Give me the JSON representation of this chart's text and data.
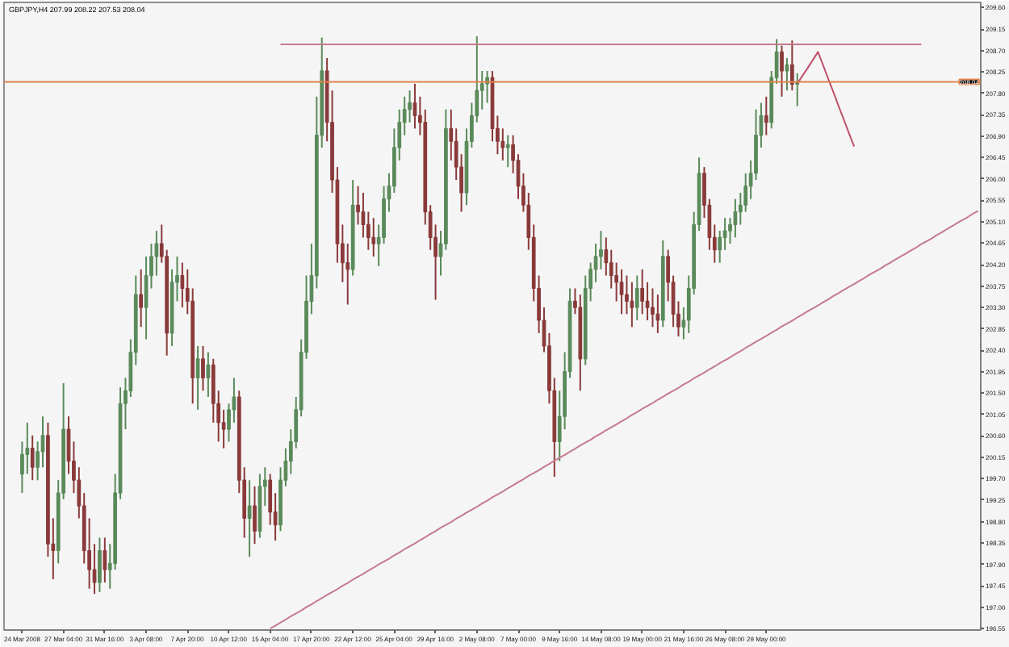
{
  "chart_data": {
    "type": "candlestick",
    "title": "GBPJPY,H4 207.99 208.22 207.53 208.04",
    "categories": [
      "24 Mar 2008",
      null,
      null,
      null,
      null,
      null,
      null,
      null,
      "27 Mar 04:00",
      null,
      null,
      null,
      null,
      null,
      null,
      null,
      "31 Mar 16:00",
      null,
      null,
      null,
      null,
      null,
      null,
      null,
      "3 Apr 08:00",
      null,
      null,
      null,
      null,
      null,
      null,
      null,
      "7 Apr 20:00",
      null,
      null,
      null,
      null,
      null,
      null,
      null,
      "10 Apr 12:00",
      null,
      null,
      null,
      null,
      null,
      null,
      null,
      "15 Apr 04:00",
      null,
      null,
      null,
      null,
      null,
      null,
      null,
      "17 Apr 20:00",
      null,
      null,
      null,
      null,
      null,
      null,
      null,
      "22 Apr 12:00",
      null,
      null,
      null,
      null,
      null,
      null,
      null,
      "25 Apr 04:00",
      null,
      null,
      null,
      null,
      null,
      null,
      null,
      "29 Apr 16:00",
      null,
      null,
      null,
      null,
      null,
      null,
      null,
      "2 May 08:00",
      null,
      null,
      null,
      null,
      null,
      null,
      null,
      "7 May 00:00",
      null,
      null,
      null,
      null,
      null,
      null,
      null,
      "9 May 16:00",
      null,
      null,
      null,
      null,
      null,
      null,
      null,
      "14 May 08:00",
      null,
      null,
      null,
      null,
      null,
      null,
      null,
      "19 May 00:00",
      null,
      null,
      null,
      null,
      null,
      null,
      null,
      "21 May 16:00",
      null,
      null,
      null,
      null,
      null,
      null,
      null,
      "26 May 08:00",
      null,
      null,
      null,
      null,
      null,
      null,
      null,
      "29 May 00:00",
      null,
      null,
      null,
      null,
      null,
      null,
      null,
      null,
      null,
      null,
      null,
      null,
      null,
      null,
      null,
      null,
      null,
      null,
      null,
      null,
      null,
      null,
      null,
      null,
      null,
      null,
      null,
      null,
      null,
      null,
      null,
      null,
      null,
      null,
      null,
      null,
      null,
      null,
      null,
      null,
      null
    ],
    "ylim": [
      196.52,
      209.71
    ],
    "yticks": [
      196.55,
      {
        "value": 197,
        "label": "197.00"
      },
      197.45,
      {
        "value": 197.9,
        "label": "197.90"
      },
      198.35,
      {
        "value": 198.8,
        "label": "198.80"
      },
      199.25,
      {
        "value": 199.7,
        "label": "199.70"
      },
      200.15,
      {
        "value": 200.6,
        "label": "200.60"
      },
      201.05,
      {
        "value": 201.5,
        "label": "201.50"
      },
      201.95,
      {
        "value": 202.4,
        "label": "202.40"
      },
      202.85,
      {
        "value": 203.3,
        "label": "203.30"
      },
      203.75,
      {
        "value": 204.2,
        "label": "204.20"
      },
      204.65,
      {
        "value": 205.1,
        "label": "205.10"
      },
      205.55,
      {
        "value": 206,
        "label": "206.00"
      },
      206.45,
      {
        "value": 206.9,
        "label": "206.90"
      },
      207.35,
      {
        "value": 207.8,
        "label": "207.80"
      },
      208.25,
      {
        "value": 208.7,
        "label": "208.70"
      },
      209.15,
      {
        "value": 209.6,
        "label": "209.60"
      }
    ],
    "ref_lines": [
      {
        "axis": "y",
        "value": 208.04,
        "label": "208.04",
        "color": "#e0824a"
      }
    ],
    "series": [
      {
        "ohlc": [
          [
            199.8,
            200.48,
            199.4,
            200.21
          ],
          [
            200.21,
            200.88,
            199.8,
            200.34
          ],
          [
            200.34,
            200.61,
            199.67,
            199.94
          ],
          [
            199.94,
            200.48,
            199.67,
            200.27
          ],
          [
            200.27,
            201.01,
            199.94,
            200.61
          ],
          [
            200.61,
            200.88,
            198.06,
            198.33
          ],
          [
            198.33,
            198.87,
            197.59,
            198.19
          ],
          [
            198.19,
            199.67,
            197.92,
            199.4
          ],
          [
            199.4,
            201.71,
            199.27,
            200.74
          ],
          [
            200.74,
            201.01,
            199.8,
            200.07
          ],
          [
            200.07,
            200.48,
            199.4,
            199.67
          ],
          [
            199.67,
            199.94,
            198.87,
            199.13
          ],
          [
            199.13,
            199.4,
            197.92,
            198.19
          ],
          [
            198.19,
            198.87,
            197.39,
            197.79
          ],
          [
            197.79,
            198.33,
            197.28,
            197.52
          ],
          [
            197.52,
            198.46,
            197.32,
            198.19
          ],
          [
            198.19,
            198.46,
            197.52,
            197.79
          ],
          [
            197.79,
            198.33,
            197.39,
            197.92
          ],
          [
            197.92,
            199.8,
            197.79,
            199.4
          ],
          [
            199.4,
            201.62,
            199.27,
            201.28
          ],
          [
            201.28,
            201.82,
            200.74,
            201.55
          ],
          [
            201.55,
            202.63,
            201.42,
            202.36
          ],
          [
            202.36,
            203.97,
            202.09,
            203.57
          ],
          [
            203.57,
            204.1,
            202.89,
            203.3
          ],
          [
            203.3,
            204.37,
            202.63,
            203.97
          ],
          [
            203.97,
            204.64,
            203.7,
            204.37
          ],
          [
            204.37,
            204.91,
            203.97,
            204.64
          ],
          [
            204.64,
            205.04,
            204.24,
            204.37
          ],
          [
            204.37,
            204.51,
            202.29,
            202.76
          ],
          [
            202.76,
            204.1,
            202.49,
            203.83
          ],
          [
            203.83,
            204.37,
            203.43,
            203.97
          ],
          [
            203.97,
            204.24,
            203.3,
            203.7
          ],
          [
            203.7,
            204.1,
            203.16,
            203.43
          ],
          [
            203.43,
            203.7,
            201.28,
            201.82
          ],
          [
            201.82,
            202.49,
            201.15,
            202.22
          ],
          [
            202.22,
            202.49,
            201.55,
            201.82
          ],
          [
            201.82,
            202.36,
            201.42,
            202.09
          ],
          [
            202.09,
            202.22,
            200.88,
            201.28
          ],
          [
            201.28,
            201.55,
            200.48,
            200.88
          ],
          [
            200.88,
            201.15,
            200.34,
            200.74
          ],
          [
            200.74,
            201.28,
            200.48,
            201.15
          ],
          [
            201.15,
            201.82,
            200.88,
            201.42
          ],
          [
            201.42,
            201.55,
            199.4,
            199.67
          ],
          [
            199.67,
            199.94,
            198.46,
            198.87
          ],
          [
            198.87,
            199.67,
            198.06,
            199.13
          ],
          [
            199.13,
            199.54,
            198.33,
            198.6
          ],
          [
            198.6,
            199.8,
            198.46,
            199.54
          ],
          [
            199.54,
            199.94,
            199.13,
            199.67
          ],
          [
            199.67,
            199.8,
            198.73,
            199.0
          ],
          [
            199.0,
            199.4,
            198.4,
            198.73
          ],
          [
            198.73,
            199.94,
            198.6,
            199.67
          ],
          [
            199.67,
            200.34,
            199.54,
            200.07
          ],
          [
            200.07,
            200.74,
            199.8,
            200.48
          ],
          [
            200.48,
            201.42,
            200.34,
            201.15
          ],
          [
            201.15,
            202.63,
            201.01,
            202.36
          ],
          [
            202.36,
            203.97,
            202.22,
            203.43
          ],
          [
            203.43,
            204.64,
            203.16,
            203.97
          ],
          [
            203.97,
            207.73,
            203.7,
            206.92
          ],
          [
            206.92,
            208.97,
            206.66,
            208.27
          ],
          [
            208.27,
            208.54,
            206.79,
            207.19
          ],
          [
            207.19,
            207.86,
            205.71,
            205.98
          ],
          [
            205.98,
            206.25,
            204.24,
            204.64
          ],
          [
            204.64,
            205.04,
            203.83,
            204.24
          ],
          [
            204.24,
            204.64,
            203.36,
            204.1
          ],
          [
            204.1,
            205.98,
            203.97,
            205.45
          ],
          [
            205.45,
            205.85,
            205.04,
            205.31
          ],
          [
            205.31,
            205.71,
            204.77,
            205.04
          ],
          [
            205.04,
            205.31,
            204.51,
            204.77
          ],
          [
            204.77,
            205.18,
            204.37,
            204.64
          ],
          [
            204.64,
            205.04,
            204.17,
            204.77
          ],
          [
            204.77,
            205.85,
            204.64,
            205.58
          ],
          [
            205.58,
            206.12,
            205.31,
            205.85
          ],
          [
            205.85,
            207.06,
            205.71,
            206.66
          ],
          [
            206.66,
            207.46,
            206.39,
            207.19
          ],
          [
            207.19,
            207.73,
            206.92,
            207.46
          ],
          [
            207.46,
            207.86,
            207.19,
            207.6
          ],
          [
            207.6,
            208.0,
            207.06,
            207.33
          ],
          [
            207.33,
            207.73,
            206.92,
            207.19
          ],
          [
            207.19,
            207.46,
            205.04,
            205.31
          ],
          [
            205.31,
            205.45,
            204.51,
            204.77
          ],
          [
            204.77,
            205.04,
            203.46,
            204.37
          ],
          [
            204.37,
            204.91,
            203.97,
            204.64
          ],
          [
            204.64,
            207.46,
            204.51,
            207.06
          ],
          [
            207.06,
            207.46,
            206.39,
            206.79
          ],
          [
            206.79,
            207.06,
            205.98,
            206.25
          ],
          [
            206.25,
            206.52,
            205.31,
            205.71
          ],
          [
            205.71,
            207.06,
            205.45,
            206.79
          ],
          [
            206.79,
            207.6,
            206.66,
            207.33
          ],
          [
            207.33,
            209.0,
            207.19,
            207.86
          ],
          [
            207.86,
            208.27,
            207.46,
            208.0
          ],
          [
            208.0,
            208.27,
            207.6,
            208.13
          ],
          [
            208.13,
            208.27,
            206.79,
            207.06
          ],
          [
            207.06,
            207.33,
            206.52,
            206.79
          ],
          [
            206.79,
            207.06,
            206.39,
            206.66
          ],
          [
            206.66,
            206.92,
            206.25,
            206.72
          ],
          [
            206.72,
            206.92,
            206.12,
            206.39
          ],
          [
            206.39,
            206.52,
            205.58,
            205.85
          ],
          [
            205.85,
            206.12,
            205.31,
            205.45
          ],
          [
            205.45,
            205.71,
            204.51,
            204.77
          ],
          [
            204.77,
            205.04,
            203.43,
            203.7
          ],
          [
            203.7,
            203.97,
            202.76,
            203.03
          ],
          [
            203.03,
            203.3,
            202.36,
            202.49
          ],
          [
            202.49,
            202.76,
            201.28,
            201.55
          ],
          [
            201.55,
            201.82,
            199.74,
            200.48
          ],
          [
            200.48,
            201.55,
            200.07,
            201.01
          ],
          [
            201.01,
            202.36,
            200.74,
            201.95
          ],
          [
            201.95,
            203.7,
            201.82,
            203.43
          ],
          [
            203.43,
            203.7,
            203.16,
            203.3
          ],
          [
            203.3,
            203.57,
            201.55,
            202.22
          ],
          [
            202.22,
            203.97,
            202.09,
            203.7
          ],
          [
            203.7,
            204.24,
            203.43,
            204.1
          ],
          [
            204.1,
            204.64,
            203.83,
            204.37
          ],
          [
            204.37,
            204.91,
            204.1,
            204.51
          ],
          [
            204.51,
            204.77,
            203.97,
            204.24
          ],
          [
            204.24,
            204.51,
            203.7,
            203.97
          ],
          [
            203.97,
            204.24,
            203.43,
            203.83
          ],
          [
            203.83,
            204.1,
            203.16,
            203.57
          ],
          [
            203.57,
            203.97,
            203.16,
            203.43
          ],
          [
            203.43,
            203.83,
            202.89,
            203.3
          ],
          [
            203.3,
            203.97,
            203.03,
            203.7
          ],
          [
            203.7,
            204.1,
            203.16,
            203.43
          ],
          [
            203.43,
            203.83,
            203.03,
            203.3
          ],
          [
            203.3,
            203.7,
            202.89,
            203.16
          ],
          [
            203.16,
            203.57,
            202.76,
            203.03
          ],
          [
            203.03,
            204.71,
            202.89,
            204.37
          ],
          [
            204.37,
            204.51,
            203.43,
            203.83
          ],
          [
            203.83,
            203.97,
            202.89,
            203.16
          ],
          [
            203.16,
            203.43,
            202.69,
            202.89
          ],
          [
            202.89,
            203.3,
            202.63,
            203.03
          ],
          [
            203.03,
            203.97,
            202.76,
            203.7
          ],
          [
            203.7,
            205.31,
            203.57,
            205.04
          ],
          [
            205.04,
            206.45,
            204.91,
            206.12
          ],
          [
            206.12,
            206.25,
            205.18,
            205.45
          ],
          [
            205.45,
            205.58,
            204.51,
            204.77
          ],
          [
            204.77,
            205.04,
            204.24,
            204.51
          ],
          [
            204.51,
            204.91,
            204.24,
            204.77
          ],
          [
            204.77,
            205.18,
            204.51,
            204.91
          ],
          [
            204.91,
            205.18,
            204.64,
            205.04
          ],
          [
            205.04,
            205.58,
            204.77,
            205.31
          ],
          [
            205.31,
            205.71,
            205.04,
            205.45
          ],
          [
            205.45,
            206.12,
            205.31,
            205.85
          ],
          [
            205.85,
            206.39,
            205.58,
            206.12
          ],
          [
            206.12,
            207.46,
            205.98,
            206.92
          ],
          [
            206.92,
            207.6,
            206.66,
            207.33
          ],
          [
            207.33,
            207.73,
            206.92,
            207.19
          ],
          [
            207.19,
            208.27,
            207.06,
            208.13
          ],
          [
            208.13,
            208.94,
            208.0,
            208.67
          ],
          [
            208.67,
            208.8,
            207.73,
            208.27
          ],
          [
            208.27,
            208.54,
            207.86,
            208.4
          ],
          [
            208.4,
            208.91,
            207.86,
            207.99
          ],
          [
            207.99,
            208.22,
            207.53,
            208.04
          ],
          null,
          null,
          null,
          null,
          null,
          null,
          null,
          null,
          null,
          null,
          null,
          null,
          null,
          null,
          null,
          null,
          null,
          null,
          null,
          null,
          null,
          null,
          null,
          null,
          null,
          null,
          null,
          null,
          null,
          null,
          null,
          null,
          null,
          null,
          null
        ],
        "colors": [
          "#5a8a5a",
          "#5a8a5a",
          "#8a3a3a",
          "#5a8a5a",
          "#5a8a5a",
          "#8a3a3a",
          "#8a3a3a",
          "#5a8a5a",
          "#5a8a5a",
          "#8a3a3a",
          "#8a3a3a",
          "#8a3a3a",
          "#8a3a3a",
          "#8a3a3a",
          "#8a3a3a",
          "#5a8a5a",
          "#8a3a3a",
          "#5a8a5a",
          "#5a8a5a",
          "#5a8a5a",
          "#5a8a5a",
          "#5a8a5a",
          "#5a8a5a",
          "#8a3a3a",
          "#5a8a5a",
          "#5a8a5a",
          "#5a8a5a",
          "#8a3a3a",
          "#8a3a3a",
          "#5a8a5a",
          "#5a8a5a",
          "#8a3a3a",
          "#8a3a3a",
          "#8a3a3a",
          "#5a8a5a",
          "#8a3a3a",
          "#5a8a5a",
          "#8a3a3a",
          "#8a3a3a",
          "#8a3a3a",
          "#5a8a5a",
          "#5a8a5a",
          "#8a3a3a",
          "#8a3a3a",
          "#5a8a5a",
          "#8a3a3a",
          "#5a8a5a",
          "#5a8a5a",
          "#8a3a3a",
          "#8a3a3a",
          "#5a8a5a",
          "#5a8a5a",
          "#5a8a5a",
          "#5a8a5a",
          "#5a8a5a",
          "#5a8a5a",
          "#5a8a5a",
          "#5a8a5a",
          "#5a8a5a",
          "#8a3a3a",
          "#8a3a3a",
          "#8a3a3a",
          "#8a3a3a",
          "#8a3a3a",
          "#5a8a5a",
          "#8a3a3a",
          "#8a3a3a",
          "#8a3a3a",
          "#8a3a3a",
          "#5a8a5a",
          "#5a8a5a",
          "#5a8a5a",
          "#5a8a5a",
          "#5a8a5a",
          "#5a8a5a",
          "#5a8a5a",
          "#8a3a3a",
          "#8a3a3a",
          "#8a3a3a",
          "#8a3a3a",
          "#8a3a3a",
          "#5a8a5a",
          "#5a8a5a",
          "#8a3a3a",
          "#8a3a3a",
          "#8a3a3a",
          "#5a8a5a",
          "#5a8a5a",
          "#5a8a5a",
          "#5a8a5a",
          "#5a8a5a",
          "#8a3a3a",
          "#8a3a3a",
          "#8a3a3a",
          "#5a8a5a",
          "#8a3a3a",
          "#8a3a3a",
          "#8a3a3a",
          "#8a3a3a",
          "#8a3a3a",
          "#8a3a3a",
          "#8a3a3a",
          "#8a3a3a",
          "#8a3a3a",
          "#5a8a5a",
          "#5a8a5a",
          "#5a8a5a",
          "#8a3a3a",
          "#8a3a3a",
          "#5a8a5a",
          "#5a8a5a",
          "#5a8a5a",
          "#5a8a5a",
          "#8a3a3a",
          "#8a3a3a",
          "#8a3a3a",
          "#8a3a3a",
          "#8a3a3a",
          "#8a3a3a",
          "#5a8a5a",
          "#8a3a3a",
          "#8a3a3a",
          "#8a3a3a",
          "#8a3a3a",
          "#5a8a5a",
          "#8a3a3a",
          "#8a3a3a",
          "#8a3a3a",
          "#5a8a5a",
          "#5a8a5a",
          "#5a8a5a",
          "#5a8a5a",
          "#8a3a3a",
          "#8a3a3a",
          "#8a3a3a",
          "#5a8a5a",
          "#5a8a5a",
          "#5a8a5a",
          "#5a8a5a",
          "#5a8a5a",
          "#5a8a5a",
          "#5a8a5a",
          "#5a8a5a",
          "#5a8a5a",
          "#8a3a3a",
          "#5a8a5a",
          "#5a8a5a",
          "#8a3a3a",
          "#5a8a5a",
          "#8a3a3a",
          "#5a8a5a",
          null,
          null,
          null,
          null,
          null,
          null,
          null,
          null,
          null,
          null,
          null,
          null,
          null,
          null,
          null,
          null,
          null,
          null,
          null,
          null,
          null,
          null,
          null,
          null,
          null,
          null,
          null,
          null,
          null,
          null,
          null,
          null,
          null,
          null,
          null
        ]
      },
      {
        "type": "line",
        "color": "#c47a8e",
        "values": [
          null,
          null,
          null,
          null,
          null,
          null,
          null,
          null,
          null,
          null,
          null,
          null,
          null,
          null,
          null,
          null,
          null,
          null,
          null,
          null,
          null,
          null,
          null,
          null,
          null,
          null,
          null,
          null,
          null,
          null,
          null,
          null,
          null,
          null,
          null,
          null,
          null,
          null,
          null,
          null,
          null,
          null,
          null,
          null,
          null,
          null,
          null,
          null,
          null,
          null,
          208.83,
          208.83,
          208.83,
          208.83,
          208.83,
          208.83,
          208.83,
          208.83,
          208.83,
          208.83,
          208.83,
          208.83,
          208.83,
          208.83,
          208.83,
          208.83,
          208.83,
          208.83,
          208.83,
          208.83,
          208.83,
          208.83,
          208.83,
          208.83,
          208.83,
          208.83,
          208.83,
          208.83,
          208.83,
          208.83,
          208.83,
          208.83,
          208.83,
          208.83,
          208.83,
          208.83,
          208.83,
          208.83,
          208.83,
          208.83,
          208.83,
          208.83,
          208.83,
          208.83,
          208.83,
          208.83,
          208.83,
          208.83,
          208.83,
          208.83,
          208.83,
          208.83,
          208.83,
          208.83,
          208.83,
          208.83,
          208.83,
          208.83,
          208.83,
          208.83,
          208.83,
          208.83,
          208.83,
          208.83,
          208.83,
          208.83,
          208.83,
          208.83,
          208.83,
          208.83,
          208.83,
          208.83,
          208.83,
          208.83,
          208.83,
          208.83,
          208.83,
          208.83,
          208.83,
          208.83,
          208.83,
          208.83,
          208.83,
          208.83,
          208.83,
          208.83,
          208.83,
          208.83,
          208.83,
          208.83,
          208.83,
          208.83,
          208.83,
          208.83,
          208.83,
          208.83,
          208.83,
          208.83,
          208.83,
          208.83,
          208.83,
          208.83,
          208.83,
          208.83,
          208.83,
          208.83,
          208.83,
          208.83,
          208.83,
          208.83,
          208.83,
          208.83,
          208.83,
          208.83,
          208.83,
          208.83,
          208.83,
          208.83,
          208.83,
          208.83,
          208.83,
          208.83,
          208.83,
          208.83,
          208.83,
          null,
          null,
          null,
          null,
          null,
          null,
          null,
          null,
          null,
          null,
          null
        ]
      },
      {
        "type": "line",
        "color": "#c47a8e",
        "values": [
          null,
          null,
          null,
          null,
          null,
          null,
          null,
          null,
          null,
          null,
          null,
          null,
          null,
          null,
          null,
          null,
          null,
          null,
          null,
          null,
          null,
          null,
          null,
          null,
          null,
          null,
          null,
          null,
          null,
          null,
          null,
          null,
          null,
          null,
          null,
          null,
          null,
          null,
          null,
          null,
          null,
          null,
          null,
          null,
          null,
          null,
          null,
          null,
          196.55,
          196.61,
          196.68,
          196.74,
          196.81,
          196.87,
          196.93,
          197.0,
          197.06,
          197.13,
          197.19,
          197.26,
          197.32,
          197.38,
          197.45,
          197.51,
          197.58,
          197.64,
          197.7,
          197.77,
          197.83,
          197.9,
          197.96,
          198.02,
          198.09,
          198.15,
          198.22,
          198.28,
          198.34,
          198.41,
          198.47,
          198.54,
          198.6,
          198.67,
          198.73,
          198.79,
          198.86,
          198.92,
          198.99,
          199.05,
          199.11,
          199.18,
          199.24,
          199.31,
          199.37,
          199.43,
          199.5,
          199.56,
          199.63,
          199.69,
          199.76,
          199.82,
          199.88,
          199.95,
          200.01,
          200.08,
          200.14,
          200.2,
          200.27,
          200.33,
          200.4,
          200.46,
          200.52,
          200.59,
          200.65,
          200.72,
          200.78,
          200.84,
          200.91,
          200.97,
          201.04,
          201.1,
          201.17,
          201.23,
          201.29,
          201.36,
          201.42,
          201.49,
          201.55,
          201.61,
          201.68,
          201.74,
          201.81,
          201.87,
          201.93,
          202.0,
          202.06,
          202.13,
          202.19,
          202.25,
          202.32,
          202.38,
          202.45,
          202.51,
          202.58,
          202.64,
          202.7,
          202.77,
          202.83,
          202.9,
          202.96,
          203.02,
          203.09,
          203.15,
          203.22,
          203.28,
          203.34,
          203.41,
          203.47,
          203.54,
          203.6,
          203.67,
          203.73,
          203.79,
          203.86,
          203.92,
          203.99,
          204.05,
          204.11,
          204.18,
          204.24,
          204.31,
          204.37,
          204.43,
          204.5,
          204.56,
          204.63,
          204.69,
          204.75,
          204.82,
          204.88,
          204.95,
          205.01,
          205.08,
          205.14,
          205.2,
          205.27,
          205.33
        ]
      },
      {
        "type": "line",
        "color": "#c0506a",
        "values": [
          null,
          null,
          null,
          null,
          null,
          null,
          null,
          null,
          null,
          null,
          null,
          null,
          null,
          null,
          null,
          null,
          null,
          null,
          null,
          null,
          null,
          null,
          null,
          null,
          null,
          null,
          null,
          null,
          null,
          null,
          null,
          null,
          null,
          null,
          null,
          null,
          null,
          null,
          null,
          null,
          null,
          null,
          null,
          null,
          null,
          null,
          null,
          null,
          null,
          null,
          null,
          null,
          null,
          null,
          null,
          null,
          null,
          null,
          null,
          null,
          null,
          null,
          null,
          null,
          null,
          null,
          null,
          null,
          null,
          null,
          null,
          null,
          null,
          null,
          null,
          null,
          null,
          null,
          null,
          null,
          null,
          null,
          null,
          null,
          null,
          null,
          null,
          null,
          null,
          null,
          null,
          null,
          null,
          null,
          null,
          null,
          null,
          null,
          null,
          null,
          null,
          null,
          null,
          null,
          null,
          null,
          null,
          null,
          null,
          null,
          null,
          null,
          null,
          null,
          null,
          null,
          null,
          null,
          null,
          null,
          null,
          null,
          null,
          null,
          null,
          null,
          null,
          null,
          null,
          null,
          null,
          null,
          null,
          null,
          null,
          null,
          null,
          null,
          null,
          null,
          null,
          null,
          null,
          null,
          null,
          null,
          null,
          null,
          null,
          null,
          208.0,
          208.17,
          208.33,
          208.5,
          208.67,
          208.39,
          208.1,
          207.82,
          207.53,
          207.25,
          206.96,
          206.68,
          null,
          null,
          null,
          null,
          null,
          null,
          null,
          null,
          null,
          null,
          null,
          null,
          null,
          null,
          null,
          null,
          null,
          null,
          null,
          null,
          null,
          null,
          null,
          null
        ]
      }
    ]
  }
}
